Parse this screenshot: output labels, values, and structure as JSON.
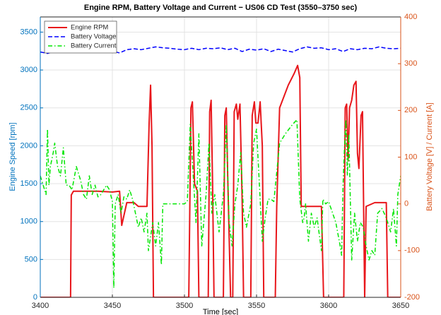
{
  "chart_data": {
    "type": "line",
    "title": "Engine RPM, Battery Voltage and Current − US06 CD Test (3550–3750 sec)",
    "xlabel": "Time [sec]",
    "ylabel": "Engine Speed [rpm]",
    "y2label": "Battery Voltage [V] / Current [A]",
    "xlim": [
      3400,
      3650
    ],
    "xticks": [
      3400,
      3450,
      3500,
      3550,
      3600,
      3650
    ],
    "ylim": [
      0,
      3700
    ],
    "yticks": [
      0,
      500,
      1000,
      1500,
      2000,
      2500,
      3000,
      3500
    ],
    "y2lim": [
      -200,
      400
    ],
    "y2ticks": [
      -200,
      -100,
      0,
      100,
      200,
      300,
      400
    ],
    "ycolor": "#0072bd",
    "y2color": "#d95319",
    "grid": true,
    "legend": "upper left",
    "series": [
      {
        "name": "Engine RPM",
        "color": "#e8161b",
        "linestyle": "solid",
        "axis": "y",
        "x": [
          3400,
          3421,
          3421.5,
          3423,
          3440,
          3450,
          3455,
          3456.5,
          3460,
          3465,
          3468,
          3474,
          3475.5,
          3476.5,
          3477.5,
          3478.5,
          3503,
          3504.5,
          3505.5,
          3507,
          3509,
          3510,
          3516.5,
          3517.5,
          3518.5,
          3519.5,
          3520.5,
          3527,
          3528,
          3529,
          3530,
          3532,
          3533.5,
          3534.5,
          3536,
          3537,
          3538.5,
          3540,
          3541,
          3546,
          3547,
          3548.5,
          3549.5,
          3551,
          3552.5,
          3554,
          3555,
          3563,
          3564,
          3566,
          3572,
          3576,
          3578.5,
          3580,
          3581,
          3595,
          3596.5,
          3610.5,
          3611.5,
          3612.5,
          3613.5,
          3614.5,
          3616,
          3617.5,
          3619,
          3620,
          3621,
          3622.5,
          3623.5,
          3625,
          3626,
          3632,
          3640,
          3641,
          3650
        ],
        "values": [
          0,
          0,
          1350,
          1400,
          1400,
          1390,
          1400,
          950,
          1250,
          1250,
          1200,
          1200,
          2300,
          2800,
          2000,
          0,
          0,
          2500,
          2580,
          1500,
          1400,
          0,
          0,
          2450,
          2600,
          1500,
          0,
          0,
          2400,
          2500,
          1600,
          0,
          0,
          2450,
          2550,
          2350,
          2550,
          1300,
          0,
          0,
          2400,
          2580,
          2300,
          2300,
          2580,
          2000,
          0,
          0,
          1200,
          2500,
          2800,
          2950,
          3060,
          2900,
          1200,
          1200,
          0,
          0,
          2500,
          2550,
          1800,
          2500,
          2600,
          2800,
          2850,
          1900,
          1700,
          2400,
          2450,
          0,
          1200,
          1250,
          1250,
          0,
          0
        ]
      },
      {
        "name": "Battery Voltage",
        "color": "#0000ff",
        "linestyle": "dashed",
        "axis": "y2",
        "x": [
          3400,
          3405,
          3410,
          3415,
          3420,
          3425,
          3430,
          3435,
          3440,
          3445,
          3450,
          3455,
          3460,
          3465,
          3470,
          3475,
          3480,
          3485,
          3490,
          3495,
          3500,
          3505,
          3510,
          3515,
          3520,
          3525,
          3530,
          3535,
          3540,
          3545,
          3550,
          3555,
          3560,
          3565,
          3570,
          3575,
          3580,
          3585,
          3590,
          3595,
          3600,
          3605,
          3610,
          3615,
          3620,
          3625,
          3630,
          3635,
          3640,
          3645,
          3650
        ],
        "values": [
          325,
          322,
          327,
          325,
          327,
          326,
          328,
          324,
          326,
          328,
          327,
          323,
          330,
          332,
          330,
          333,
          336,
          334,
          333,
          331,
          330,
          333,
          330,
          333,
          332,
          334,
          330,
          333,
          326,
          331,
          329,
          332,
          326,
          331,
          328,
          325,
          332,
          336,
          333,
          334,
          330,
          332,
          326,
          332,
          330,
          333,
          332,
          336,
          333,
          332,
          333
        ]
      },
      {
        "name": "Battery Current",
        "color": "#00e600",
        "linestyle": "dashdot",
        "axis": "y2",
        "x": [
          3400,
          3402,
          3404,
          3405,
          3406,
          3407,
          3409,
          3410,
          3412,
          3414,
          3416,
          3418,
          3420,
          3422,
          3425,
          3428,
          3430,
          3432,
          3434,
          3436,
          3438,
          3440,
          3442,
          3444,
          3446,
          3448,
          3450,
          3451,
          3452,
          3454,
          3456,
          3458,
          3460,
          3462,
          3464,
          3466,
          3468,
          3470,
          3472,
          3474,
          3475,
          3476,
          3478,
          3480,
          3482,
          3484,
          3485,
          3487,
          3500,
          3502,
          3504,
          3508,
          3510,
          3512,
          3515,
          3517,
          3519,
          3521,
          3524,
          3527,
          3529,
          3531,
          3533,
          3535,
          3537,
          3539,
          3541,
          3543,
          3546,
          3548,
          3550,
          3552,
          3554,
          3556,
          3558,
          3560,
          3562,
          3566,
          3570,
          3575,
          3578,
          3580,
          3582,
          3583,
          3584,
          3586,
          3588,
          3590,
          3592,
          3595,
          3596,
          3598,
          3600,
          3605,
          3608,
          3609,
          3610,
          3611,
          3612,
          3613,
          3614,
          3616,
          3618,
          3620,
          3622,
          3624,
          3626,
          3628,
          3630,
          3632,
          3634,
          3637,
          3640,
          3643,
          3645,
          3647,
          3648,
          3650
        ],
        "values": [
          60,
          40,
          20,
          160,
          40,
          80,
          110,
          130,
          80,
          60,
          120,
          40,
          40,
          30,
          80,
          50,
          20,
          10,
          60,
          20,
          40,
          15,
          20,
          30,
          40,
          30,
          5,
          -180,
          0,
          20,
          -20,
          15,
          10,
          30,
          10,
          -20,
          -50,
          -30,
          -60,
          -20,
          -100,
          -80,
          -40,
          -90,
          -40,
          -130,
          0,
          0,
          0,
          5,
          170,
          -40,
          150,
          -90,
          20,
          130,
          -20,
          20,
          -60,
          20,
          170,
          -40,
          -90,
          0,
          40,
          110,
          -20,
          -50,
          0,
          130,
          160,
          40,
          -80,
          -30,
          10,
          10,
          5,
          130,
          150,
          170,
          180,
          10,
          -40,
          -30,
          0,
          -80,
          -20,
          -50,
          -30,
          -100,
          10,
          0,
          5,
          -40,
          -90,
          -110,
          40,
          120,
          180,
          60,
          150,
          -120,
          -20,
          -80,
          -40,
          -50,
          -90,
          -120,
          -100,
          -110,
          -20,
          -10,
          -30,
          -60,
          -10,
          -90,
          20,
          60
        ]
      }
    ]
  }
}
